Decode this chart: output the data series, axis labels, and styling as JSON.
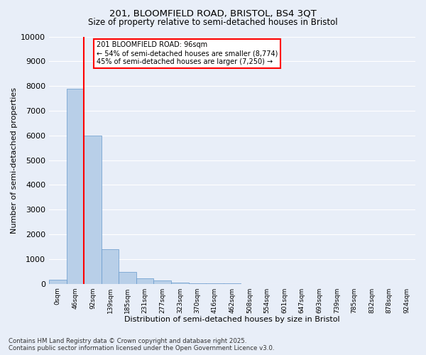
{
  "title1": "201, BLOOMFIELD ROAD, BRISTOL, BS4 3QT",
  "title2": "Size of property relative to semi-detached houses in Bristol",
  "xlabel": "Distribution of semi-detached houses by size in Bristol",
  "ylabel": "Number of semi-detached properties",
  "bar_labels": [
    "0sqm",
    "46sqm",
    "92sqm",
    "139sqm",
    "185sqm",
    "231sqm",
    "277sqm",
    "323sqm",
    "370sqm",
    "416sqm",
    "462sqm",
    "508sqm",
    "554sqm",
    "601sqm",
    "647sqm",
    "693sqm",
    "739sqm",
    "785sqm",
    "832sqm",
    "878sqm",
    "924sqm"
  ],
  "bar_values": [
    150,
    7900,
    6000,
    1400,
    480,
    220,
    120,
    50,
    10,
    5,
    3,
    1,
    0,
    0,
    0,
    0,
    0,
    0,
    0,
    0,
    0
  ],
  "bar_color": "#b8cfe8",
  "bar_edge_color": "#6699cc",
  "vline_x": 2.0,
  "vline_color": "red",
  "annotation_text": "201 BLOOMFIELD ROAD: 96sqm\n← 54% of semi-detached houses are smaller (8,774)\n45% of semi-detached houses are larger (7,250) →",
  "annotation_box_color": "white",
  "annotation_box_edge_color": "red",
  "ylim": [
    0,
    10000
  ],
  "yticks": [
    0,
    1000,
    2000,
    3000,
    4000,
    5000,
    6000,
    7000,
    8000,
    9000,
    10000
  ],
  "background_color": "#e8eef8",
  "grid_color": "white",
  "footer": "Contains HM Land Registry data © Crown copyright and database right 2025.\nContains public sector information licensed under the Open Government Licence v3.0."
}
